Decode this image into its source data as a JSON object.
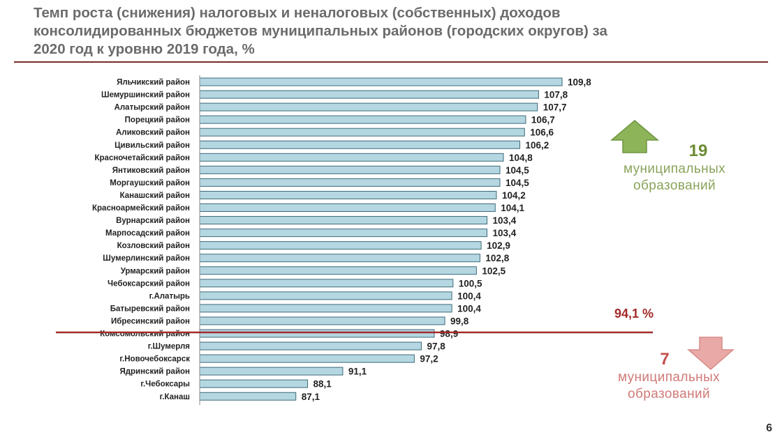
{
  "title": {
    "line1": "Темп роста  (снижения) налоговых и неналоговых (собственных) доходов",
    "line2": "консолидированных бюджетов муниципальных районов (городских округов) за",
    "line3": "2020 год к уровню 2019 года, %"
  },
  "chart_data": {
    "type": "bar",
    "orientation": "horizontal",
    "categories": [
      "Яльчикский район",
      "Шемуршинский район",
      "Алатырский район",
      "Порецкий район",
      "Аликовский район",
      "Цивильский район",
      "Красночетайский район",
      "Янтиковский район",
      "Моргаушский район",
      "Канашский район",
      "Красноармейский район",
      "Вурнарский район",
      "Марпосадский район",
      "Козловский район",
      "Шумерлинский район",
      "Урмарский район",
      "Чебоксарский район",
      "г.Алатырь",
      "Батыревский район",
      "Ибресинский район",
      "Комсомольский район",
      "г.Шумерля",
      "г.Новочебоксарск",
      "Ядринский район",
      "г.Чебоксары",
      "г.Канаш"
    ],
    "values": [
      109.8,
      107.8,
      107.7,
      106.7,
      106.6,
      106.2,
      104.8,
      104.5,
      104.5,
      104.2,
      104.1,
      103.4,
      103.4,
      102.9,
      102.8,
      102.5,
      100.5,
      100.4,
      100.4,
      99.8,
      98.9,
      97.8,
      97.2,
      91.1,
      88.1,
      87.1
    ],
    "value_labels": [
      "109,8",
      "107,8",
      "107,7",
      "106,7",
      "106,6",
      "106,2",
      "104,8",
      "104,5",
      "104,5",
      "104,2",
      "104,1",
      "103,4",
      "103,4",
      "102,9",
      "102,8",
      "102,5",
      "100,5",
      "100,4",
      "100,4",
      "99,8",
      "98,9",
      "97,8",
      "97,2",
      "91,1",
      "88,1",
      "87,1"
    ],
    "reference_line": {
      "label": "94,1 %",
      "value": 94.1
    },
    "bar_color": "#b4d7e2",
    "bar_border": "#3d6978"
  },
  "annotations": {
    "growth": {
      "count": "19",
      "line1": "муниципальных",
      "line2": "образований",
      "color": "#6b8c33",
      "arrow": "up-arrow-icon"
    },
    "decline": {
      "count": "7",
      "line1": "муниципальных",
      "line2": "образований",
      "color": "#c0504d",
      "arrow": "down-arrow-icon"
    },
    "reference_color": "#a32a2a"
  },
  "page_number": "6"
}
